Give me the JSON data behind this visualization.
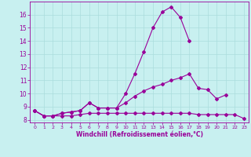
{
  "title": "",
  "xlabel": "Windchill (Refroidissement éolien,°C)",
  "background_color": "#c8f0f0",
  "line_color": "#990099",
  "grid_color": "#aadddd",
  "xlim": [
    -0.5,
    23.5
  ],
  "ylim": [
    7.8,
    17.0
  ],
  "yticks": [
    8,
    9,
    10,
    11,
    12,
    13,
    14,
    15,
    16
  ],
  "xticks": [
    0,
    1,
    2,
    3,
    4,
    5,
    6,
    7,
    8,
    9,
    10,
    11,
    12,
    13,
    14,
    15,
    16,
    17,
    18,
    19,
    20,
    21,
    22,
    23
  ],
  "line1_x": [
    0,
    1,
    2,
    3,
    4,
    5,
    6,
    7,
    8,
    9,
    10,
    11,
    12,
    13,
    14,
    15,
    16,
    17
  ],
  "line1_y": [
    8.7,
    8.3,
    8.3,
    8.5,
    8.6,
    8.7,
    9.3,
    8.9,
    8.9,
    8.9,
    10.0,
    11.5,
    13.2,
    15.0,
    16.2,
    16.6,
    15.8,
    14.0
  ],
  "line2_x": [
    0,
    1,
    2,
    3,
    4,
    5,
    6,
    7,
    8,
    9,
    10,
    11,
    12,
    13,
    14,
    15,
    16,
    17,
    18,
    19,
    20,
    21
  ],
  "line2_y": [
    8.7,
    8.3,
    8.3,
    8.5,
    8.6,
    8.7,
    9.3,
    8.9,
    8.9,
    8.9,
    9.3,
    9.8,
    10.2,
    10.5,
    10.7,
    11.0,
    11.2,
    11.5,
    10.4,
    10.3,
    9.6,
    9.9
  ],
  "line3_x": [
    0,
    1,
    2,
    3,
    4,
    5,
    6,
    7,
    8,
    9,
    10,
    11,
    12,
    13,
    14,
    15,
    16,
    17,
    18,
    19,
    20,
    21,
    22,
    23
  ],
  "line3_y": [
    8.7,
    8.3,
    8.3,
    8.3,
    8.3,
    8.4,
    8.5,
    8.5,
    8.5,
    8.5,
    8.5,
    8.5,
    8.5,
    8.5,
    8.5,
    8.5,
    8.5,
    8.5,
    8.4,
    8.4,
    8.4,
    8.4,
    8.4,
    8.1
  ],
  "marker": "D",
  "markersize": 2,
  "linewidth": 0.8
}
